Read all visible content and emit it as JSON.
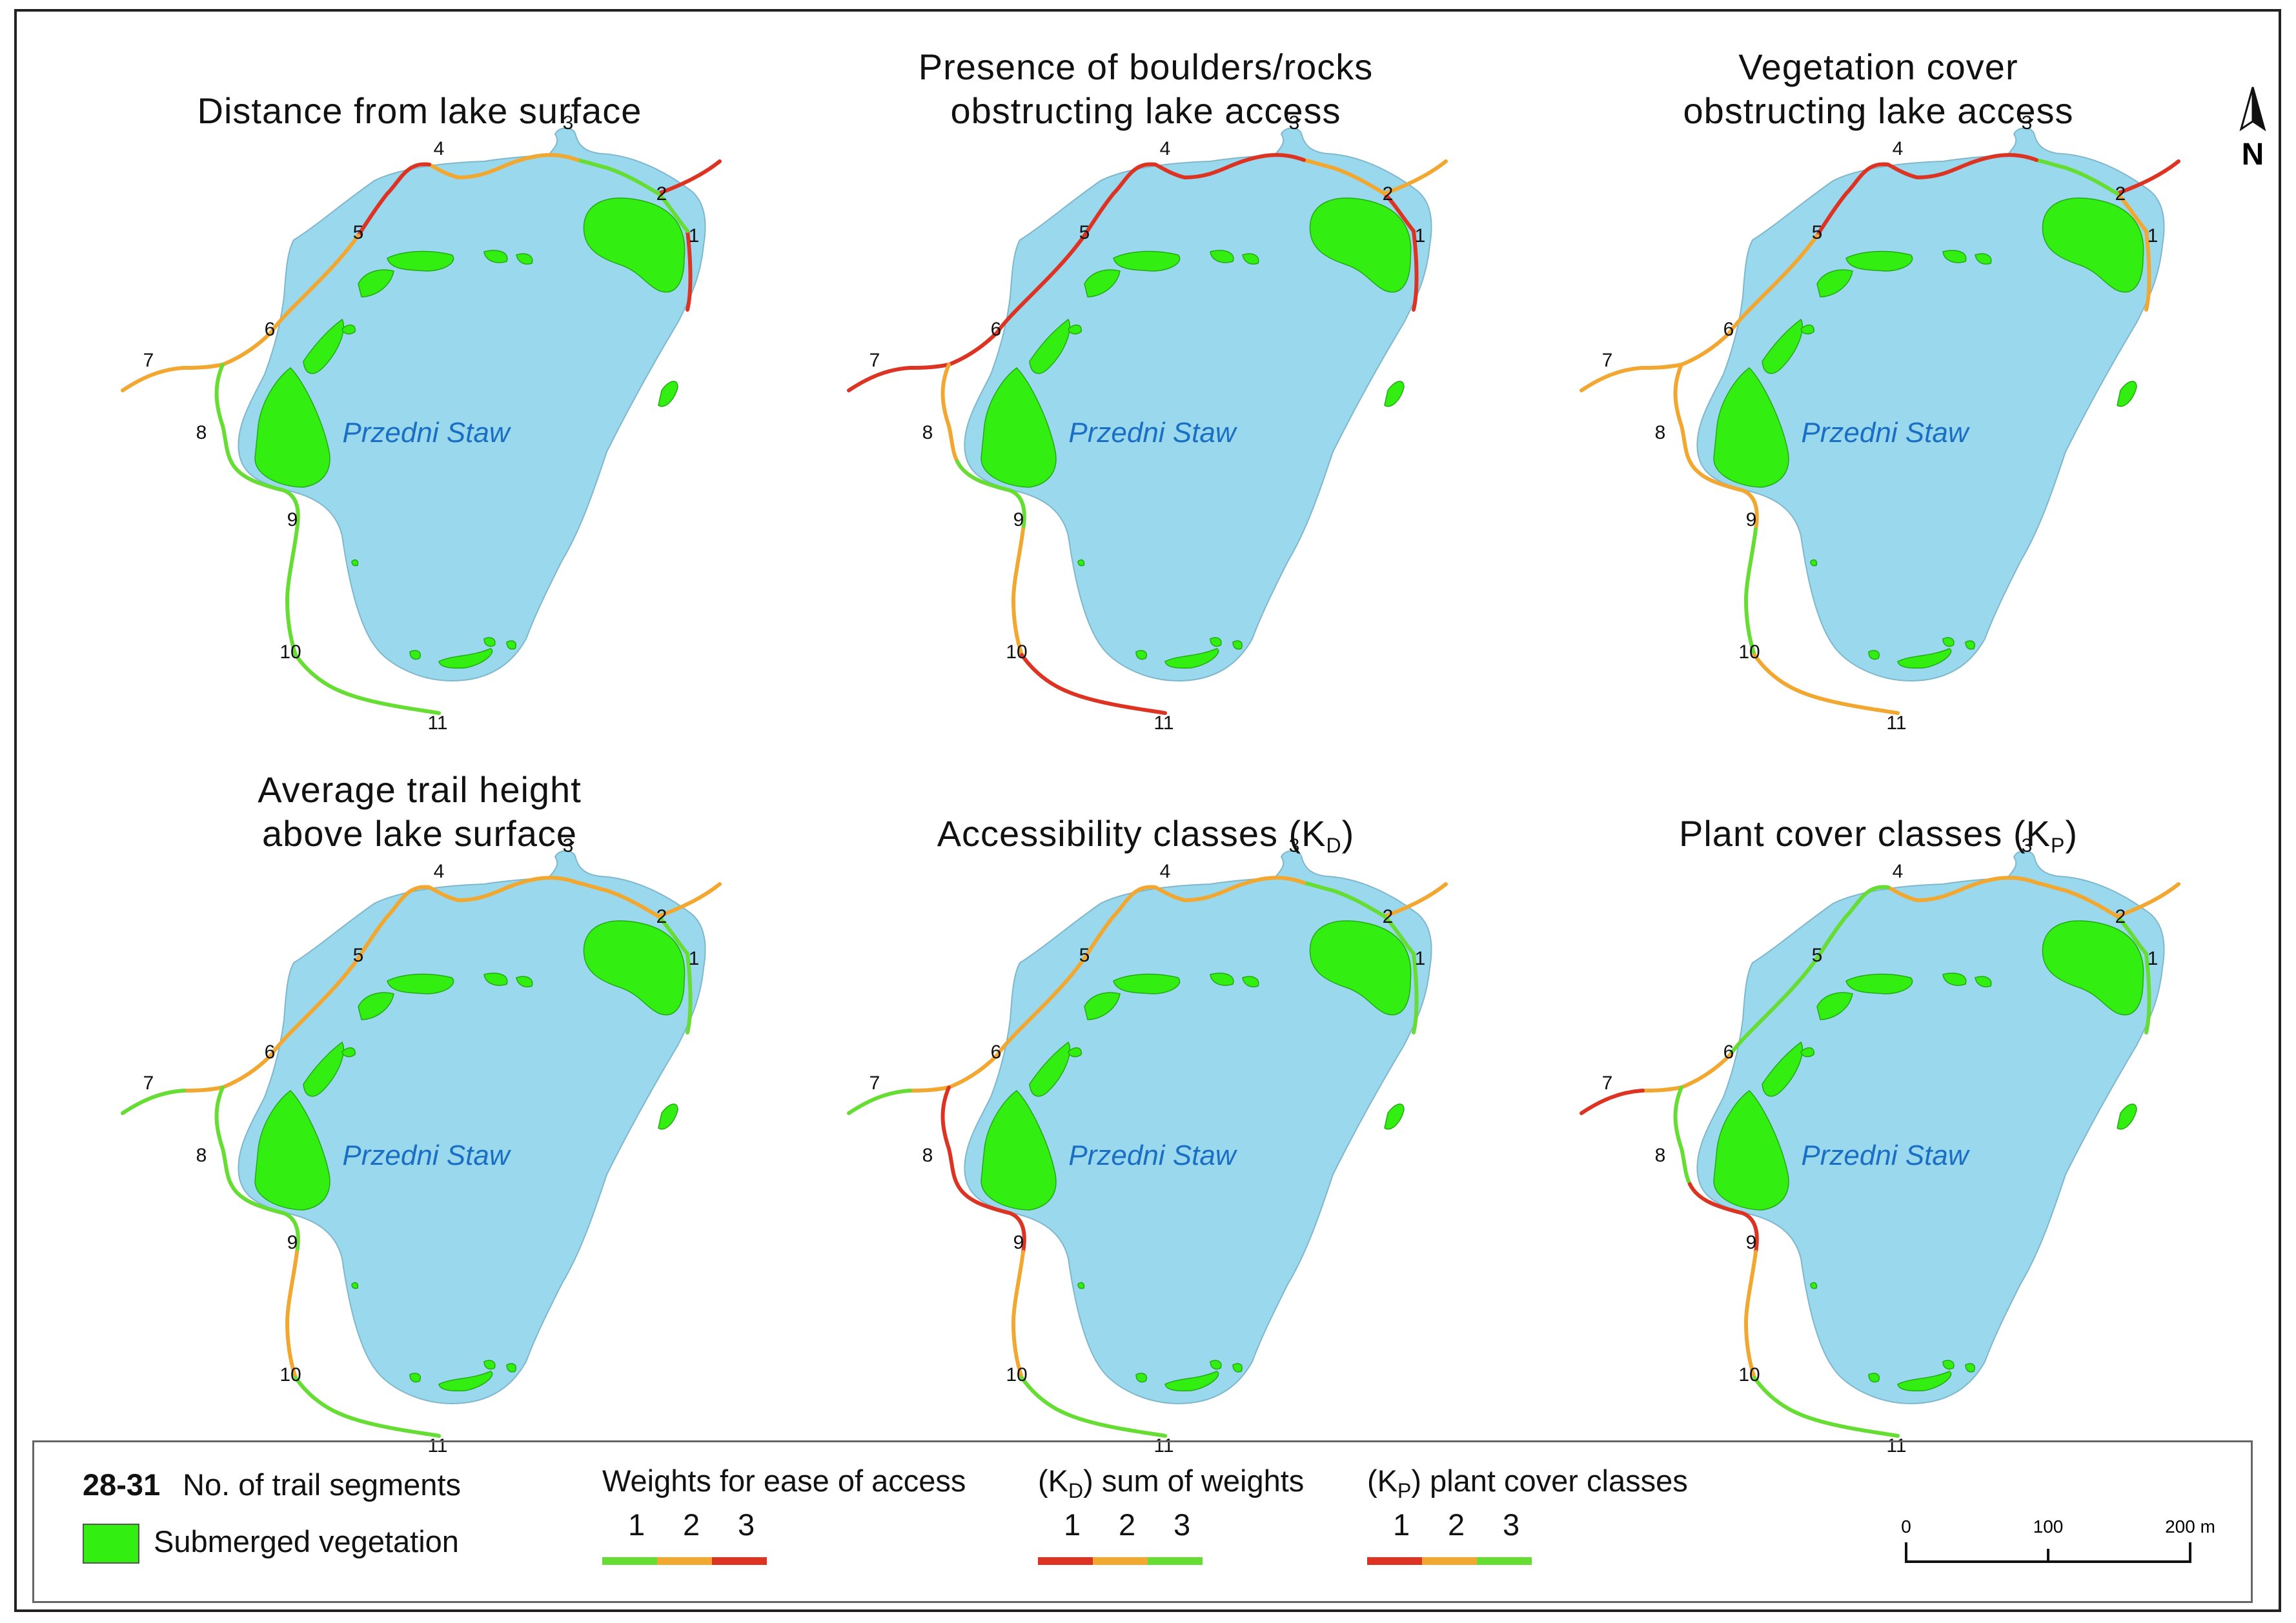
{
  "panels": [
    {
      "title_lines": [
        "Distance from lake surface"
      ],
      "title_sub": "",
      "title_suffix": "",
      "lake_name": "Przedni Staw",
      "segment_classes": [
        3,
        1,
        3,
        1,
        2,
        3,
        2,
        2,
        2,
        1,
        1,
        1,
        1
      ]
    },
    {
      "title_lines": [
        "Presence of boulders/rocks",
        "obstructing lake access"
      ],
      "title_sub": "",
      "title_suffix": "",
      "lake_name": "Przedni Staw",
      "segment_classes": [
        3,
        3,
        2,
        2,
        3,
        3,
        3,
        3,
        3,
        2,
        1,
        2,
        3
      ]
    },
    {
      "title_lines": [
        "Vegetation cover",
        "obstructing lake access"
      ],
      "title_sub": "",
      "title_suffix": "",
      "lake_name": "Przedni Staw",
      "segment_classes": [
        2,
        2,
        3,
        1,
        3,
        3,
        2,
        2,
        2,
        2,
        2,
        1,
        2
      ]
    },
    {
      "title_lines": [
        "Average trail height",
        "above lake surface"
      ],
      "title_sub": "",
      "title_suffix": "",
      "lake_name": "Przedni Staw",
      "segment_classes": [
        1,
        1,
        2,
        2,
        2,
        2,
        2,
        2,
        1,
        1,
        1,
        2,
        1
      ]
    },
    {
      "title_lines": [
        "Accessibility classes (K"
      ],
      "title_sub": "D",
      "title_suffix": ")",
      "lake_name": "Przedni Staw",
      "segment_classes": [
        1,
        1,
        2,
        1,
        2,
        2,
        2,
        2,
        1,
        3,
        3,
        2,
        1
      ]
    },
    {
      "title_lines": [
        "Plant cover classes (K"
      ],
      "title_sub": "P",
      "title_suffix": ")",
      "lake_name": "Przedni Staw",
      "segment_classes": [
        1,
        1,
        2,
        2,
        2,
        1,
        1,
        2,
        3,
        1,
        3,
        2,
        1
      ]
    }
  ],
  "segment_numbers": [
    "1",
    "2",
    "3",
    "4",
    "5",
    "6",
    "7",
    "8",
    "9",
    "10",
    "11"
  ],
  "north_arrow_label": "N",
  "legend": {
    "segments_bold": "28-31",
    "segments_text": "No. of trail segments",
    "vegetation_text": "Submerged vegetation",
    "weights_title": "Weights for ease of access",
    "kd_title_pre": "(K",
    "kd_title_sub": "D",
    "kd_title_post": ") sum of weights",
    "kp_title_pre": "(K",
    "kp_title_sub": "P",
    "kp_title_post": ") plant cover classes",
    "class_numbers": [
      "1",
      "2",
      "3"
    ],
    "weights_colors": [
      "#66dd33",
      "#f2a830",
      "#dd3322"
    ],
    "kd_colors": [
      "#dd3322",
      "#f2a830",
      "#66dd33"
    ],
    "kp_colors": [
      "#dd3322",
      "#f2a830",
      "#66dd33"
    ],
    "scale_ticks": [
      "0",
      "100",
      "200 m"
    ]
  },
  "colors": {
    "lake": "#9ad8ee",
    "vegetation": "#33ee11",
    "class1": "#66dd33",
    "class2": "#f2a830",
    "class3": "#dd3322"
  }
}
